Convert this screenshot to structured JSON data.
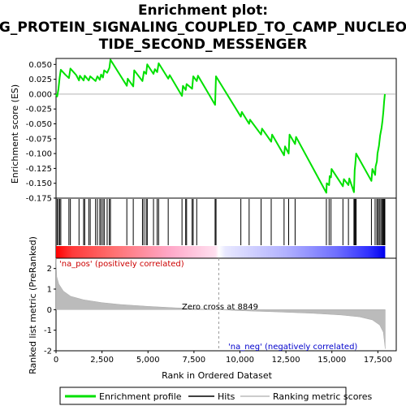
{
  "chart_data": {
    "type": "line",
    "title_lines": [
      "Enrichment plot:",
      "G_PROTEIN_SIGNALING_COUPLED_TO_CAMP_NUCLEO",
      "TIDE_SECOND_MESSENGER"
    ],
    "es_panel": {
      "ylabel": "Enrichment score (ES)",
      "ylim": [
        -0.175,
        0.06
      ],
      "yticks": [
        0.05,
        0.025,
        0.0,
        -0.025,
        -0.05,
        -0.075,
        -0.1,
        -0.125,
        -0.15,
        -0.175
      ],
      "ytick_labels": [
        "0.050",
        "0.025",
        "0.000",
        "-0.025",
        "-0.050",
        "-0.075",
        "-0.100",
        "-0.125",
        "-0.150",
        "-0.175"
      ],
      "line_color": "#00e000",
      "points": [
        [
          0,
          0.0
        ],
        [
          60,
          -0.004
        ],
        [
          130,
          0.008
        ],
        [
          200,
          0.028
        ],
        [
          260,
          0.041
        ],
        [
          500,
          0.033
        ],
        [
          700,
          0.027
        ],
        [
          780,
          0.043
        ],
        [
          1100,
          0.032
        ],
        [
          1250,
          0.023
        ],
        [
          1300,
          0.031
        ],
        [
          1500,
          0.023
        ],
        [
          1560,
          0.031
        ],
        [
          1780,
          0.023
        ],
        [
          1860,
          0.03
        ],
        [
          2150,
          0.022
        ],
        [
          2250,
          0.03
        ],
        [
          2380,
          0.024
        ],
        [
          2450,
          0.033
        ],
        [
          2550,
          0.028
        ],
        [
          2620,
          0.04
        ],
        [
          2780,
          0.036
        ],
        [
          2900,
          0.044
        ],
        [
          2960,
          0.058
        ],
        [
          3850,
          0.014
        ],
        [
          3900,
          0.026
        ],
        [
          4200,
          0.013
        ],
        [
          4250,
          0.04
        ],
        [
          4700,
          0.022
        ],
        [
          4780,
          0.038
        ],
        [
          4900,
          0.034
        ],
        [
          4960,
          0.05
        ],
        [
          5300,
          0.034
        ],
        [
          5380,
          0.042
        ],
        [
          5500,
          0.037
        ],
        [
          5580,
          0.052
        ],
        [
          6100,
          0.026
        ],
        [
          6180,
          0.032
        ],
        [
          6850,
          -0.003
        ],
        [
          6900,
          0.014
        ],
        [
          7050,
          0.007
        ],
        [
          7100,
          0.017
        ],
        [
          7400,
          0.009
        ],
        [
          7460,
          0.03
        ],
        [
          7650,
          0.022
        ],
        [
          7720,
          0.031
        ],
        [
          8650,
          -0.018
        ],
        [
          8700,
          0.03
        ],
        [
          10050,
          -0.038
        ],
        [
          10100,
          -0.03
        ],
        [
          10500,
          -0.05
        ],
        [
          10550,
          -0.043
        ],
        [
          11150,
          -0.068
        ],
        [
          11200,
          -0.058
        ],
        [
          11700,
          -0.08
        ],
        [
          11750,
          -0.068
        ],
        [
          12400,
          -0.103
        ],
        [
          12450,
          -0.088
        ],
        [
          12650,
          -0.1
        ],
        [
          12700,
          -0.068
        ],
        [
          13000,
          -0.084
        ],
        [
          13050,
          -0.072
        ],
        [
          14700,
          -0.166
        ],
        [
          14720,
          -0.15
        ],
        [
          14850,
          -0.153
        ],
        [
          14880,
          -0.138
        ],
        [
          14950,
          -0.14
        ],
        [
          14980,
          -0.126
        ],
        [
          15600,
          -0.155
        ],
        [
          15650,
          -0.143
        ],
        [
          15900,
          -0.153
        ],
        [
          15950,
          -0.142
        ],
        [
          16200,
          -0.165
        ],
        [
          16240,
          -0.128
        ],
        [
          16280,
          -0.116
        ],
        [
          16320,
          -0.1
        ],
        [
          17150,
          -0.146
        ],
        [
          17200,
          -0.126
        ],
        [
          17350,
          -0.136
        ],
        [
          17380,
          -0.122
        ],
        [
          17450,
          -0.113
        ],
        [
          17480,
          -0.1
        ],
        [
          17560,
          -0.087
        ],
        [
          17620,
          -0.07
        ],
        [
          17700,
          -0.057
        ],
        [
          17750,
          -0.045
        ],
        [
          17800,
          -0.03
        ],
        [
          17840,
          -0.012
        ],
        [
          17880,
          0.0
        ]
      ]
    },
    "hits": [
      60,
      130,
      200,
      260,
      700,
      780,
      1250,
      1500,
      1560,
      1780,
      1860,
      2150,
      2250,
      2380,
      2450,
      2550,
      2620,
      2780,
      2900,
      2960,
      3850,
      4200,
      4700,
      4780,
      4900,
      4960,
      5300,
      5500,
      5580,
      6100,
      6850,
      7050,
      7100,
      7400,
      7460,
      7650,
      8650,
      8700,
      10050,
      10500,
      11150,
      11700,
      12400,
      12650,
      13000,
      14700,
      14850,
      14950,
      15600,
      15900,
      16200,
      16240,
      16280,
      16320,
      17150,
      17350,
      17450,
      17480,
      17560,
      17620,
      17700,
      17750,
      17800,
      17840,
      17880
    ],
    "rank_panel": {
      "ylabel": "Ranked list metric (PreRanked)",
      "ylim": [
        -2,
        2.5
      ],
      "yticks": [
        2,
        1,
        0,
        -1,
        -2
      ],
      "ytick_labels": [
        "2",
        "1",
        "0",
        "-1",
        "-2"
      ],
      "metric_curve": [
        [
          0,
          2.5
        ],
        [
          40,
          1.6
        ],
        [
          150,
          1.25
        ],
        [
          400,
          0.9
        ],
        [
          800,
          0.65
        ],
        [
          1500,
          0.48
        ],
        [
          2500,
          0.34
        ],
        [
          3500,
          0.25
        ],
        [
          5000,
          0.16
        ],
        [
          6500,
          0.09
        ],
        [
          8000,
          0.03
        ],
        [
          8849,
          0.0
        ],
        [
          10000,
          -0.05
        ],
        [
          12000,
          -0.11
        ],
        [
          14000,
          -0.18
        ],
        [
          15500,
          -0.26
        ],
        [
          16500,
          -0.35
        ],
        [
          17200,
          -0.5
        ],
        [
          17600,
          -0.75
        ],
        [
          17800,
          -1.1
        ],
        [
          17900,
          -1.9
        ]
      ],
      "zero_cross_label": "Zero cross at 8849",
      "zero_cross": 8849,
      "pos_label": "'na_pos' (positively correlated)",
      "neg_label": "'na_neg' (negatively correlated)"
    },
    "x_axis": {
      "xlabel": "Rank in Ordered Dataset",
      "xlim": [
        0,
        18500
      ],
      "max_rank": 17900,
      "xticks": [
        0,
        2500,
        5000,
        7500,
        10000,
        12500,
        15000,
        17500
      ],
      "xtick_labels": [
        "0",
        "2,500",
        "5,000",
        "7,500",
        "10,000",
        "12,500",
        "15,000",
        "17,500"
      ]
    },
    "legend": {
      "placement": "bottom",
      "entries": [
        {
          "label": "Enrichment profile",
          "color": "#00e000"
        },
        {
          "label": "Hits",
          "color": "#000000"
        },
        {
          "label": "Ranking metric scores",
          "color": "#bbbbbb"
        }
      ]
    }
  }
}
